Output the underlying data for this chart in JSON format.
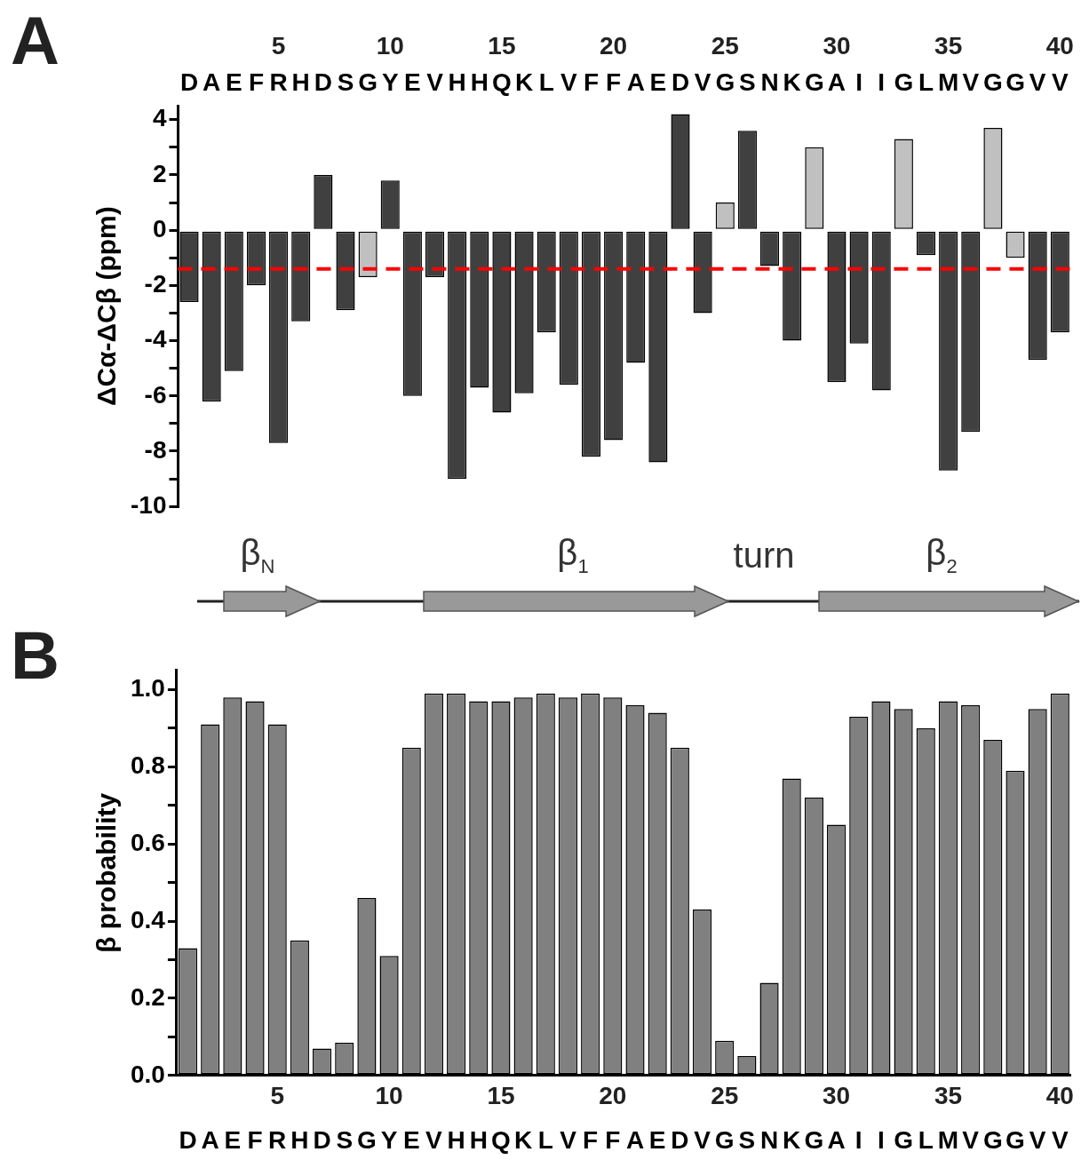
{
  "chart_data": [
    {
      "type": "bar",
      "title": "A",
      "ylabel": "ΔCα-ΔCβ (ppm)",
      "categories": [
        "D",
        "A",
        "E",
        "F",
        "R",
        "H",
        "D",
        "S",
        "G",
        "Y",
        "E",
        "V",
        "H",
        "H",
        "Q",
        "K",
        "L",
        "V",
        "F",
        "F",
        "A",
        "E",
        "D",
        "V",
        "G",
        "S",
        "N",
        "K",
        "G",
        "A",
        "I",
        "I",
        "G",
        "L",
        "M",
        "V",
        "G",
        "G",
        "V",
        "V"
      ],
      "x2lim": [
        0.5,
        40.5
      ],
      "x2ticks": [
        5,
        10,
        15,
        20,
        25,
        30,
        35,
        40
      ],
      "values": [
        -2.6,
        -6.2,
        -5.1,
        -2.0,
        -7.7,
        -3.3,
        2.0,
        -2.9,
        -1.7,
        1.8,
        -6.0,
        -1.7,
        -9.0,
        -5.7,
        -6.6,
        -5.9,
        -3.7,
        -5.6,
        -8.2,
        -7.6,
        -4.8,
        -8.4,
        4.2,
        -3.0,
        1.0,
        3.6,
        -1.3,
        -4.0,
        3.0,
        -5.5,
        -4.1,
        -5.8,
        3.3,
        -0.9,
        -8.7,
        -7.3,
        3.7,
        -1.0,
        -4.7,
        -3.7
      ],
      "colors": [
        "#404040",
        "#404040",
        "#404040",
        "#404040",
        "#404040",
        "#404040",
        "#404040",
        "#404040",
        "#c0c0c0",
        "#404040",
        "#404040",
        "#404040",
        "#404040",
        "#404040",
        "#404040",
        "#404040",
        "#404040",
        "#404040",
        "#404040",
        "#404040",
        "#404040",
        "#404040",
        "#404040",
        "#404040",
        "#c0c0c0",
        "#404040",
        "#404040",
        "#404040",
        "#c0c0c0",
        "#404040",
        "#404040",
        "#404040",
        "#c0c0c0",
        "#404040",
        "#404040",
        "#404040",
        "#c0c0c0",
        "#c0c0c0",
        "#404040",
        "#404040"
      ],
      "ylim": [
        -10,
        4.5
      ],
      "yticks": [
        -10,
        {
          "value": -9,
          "label": null
        },
        -8,
        {
          "value": -7,
          "label": null
        },
        -6,
        {
          "value": -5,
          "label": null
        },
        -4,
        {
          "value": -3,
          "label": null
        },
        -2,
        {
          "value": -1,
          "label": null
        },
        0,
        {
          "value": 1,
          "label": null
        },
        2,
        {
          "value": 3,
          "label": null
        },
        4
      ],
      "ref_lines": [
        {
          "axis": "y",
          "value": -1.4,
          "color": "#ff0000",
          "line_style": "dashed"
        }
      ],
      "annotations": [
        "β$_{N}$",
        "β$_{1}$",
        "turn",
        "β$_{2}$"
      ]
    },
    {
      "type": "bar",
      "title": "B",
      "ylabel": "β probability",
      "categories": [
        "D",
        "A",
        "E",
        "F",
        "R",
        "H",
        "D",
        "S",
        "G",
        "Y",
        "E",
        "V",
        "H",
        "H",
        "Q",
        "K",
        "L",
        "V",
        "F",
        "F",
        "A",
        "E",
        "D",
        "V",
        "G",
        "S",
        "N",
        "K",
        "G",
        "A",
        "I",
        "I",
        "G",
        "L",
        "M",
        "V",
        "G",
        "G",
        "V",
        "V"
      ],
      "x2lim": [
        0.5,
        40.5
      ],
      "x2ticks": [
        5,
        10,
        15,
        20,
        25,
        30,
        35,
        40
      ],
      "values": [
        0.33,
        0.91,
        0.98,
        0.97,
        0.91,
        0.35,
        0.07,
        0.085,
        0.46,
        0.31,
        0.85,
        0.99,
        0.99,
        0.97,
        0.97,
        0.98,
        0.99,
        0.98,
        0.99,
        0.98,
        0.96,
        0.94,
        0.85,
        0.43,
        0.09,
        0.05,
        0.24,
        0.77,
        0.72,
        0.65,
        0.93,
        0.97,
        0.95,
        0.9,
        0.97,
        0.96,
        0.87,
        0.79,
        0.95,
        0.99
      ],
      "color": "#808080",
      "ylim": [
        0,
        1.05
      ],
      "yticks": [
        {
          "value": 0,
          "label": "0.0"
        },
        {
          "value": 0.1,
          "label": null
        },
        {
          "value": 0.2,
          "label": "0.2"
        },
        {
          "value": 0.3,
          "label": null
        },
        {
          "value": 0.4,
          "label": "0.4"
        },
        {
          "value": 0.5,
          "label": null
        },
        {
          "value": 0.6,
          "label": "0.6"
        },
        {
          "value": 0.7,
          "label": null
        },
        {
          "value": 0.8,
          "label": "0.8"
        },
        {
          "value": 0.9,
          "label": null
        },
        {
          "value": 1,
          "label": "1.0"
        }
      ]
    }
  ]
}
